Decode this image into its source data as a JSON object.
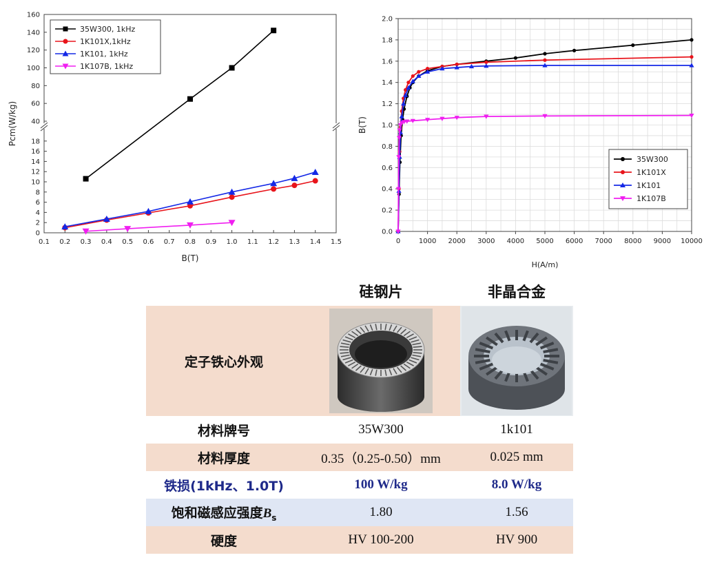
{
  "colors": {
    "black": "#000000",
    "red": "#e8141b",
    "blue": "#1428e6",
    "magenta": "#f01ef0",
    "table_peach": "#f4dccd",
    "table_blue": "#dfe6f4",
    "accent_text": "#1f2a8a"
  },
  "chart_data": [
    {
      "type": "line",
      "xlabel": "B(T)",
      "ylabel": "Pcm(W/kg)",
      "xlim": [
        0.1,
        1.5
      ],
      "x_ticks": [
        "0.1",
        "0.2",
        "0.3",
        "0.4",
        "0.5",
        "0.6",
        "0.7",
        "0.8",
        "0.9",
        "1.0",
        "1.1",
        "1.2",
        "1.3",
        "1.4",
        "1.5"
      ],
      "y_axis_broken": true,
      "y_lower_range": [
        0,
        20
      ],
      "y_lower_ticks": [
        "0",
        "2",
        "4",
        "6",
        "8",
        "10",
        "12",
        "14",
        "16",
        "18"
      ],
      "y_upper_range": [
        40,
        160
      ],
      "y_upper_ticks": [
        "40",
        "60",
        "80",
        "100",
        "120",
        "140",
        "160"
      ],
      "legend_position": "top-left",
      "series": [
        {
          "name": "35W300, 1kHz",
          "color": "#000000",
          "marker": "square",
          "x": [
            0.3,
            0.8,
            1.0,
            1.2
          ],
          "y": [
            10.6,
            65,
            100,
            142
          ]
        },
        {
          "name": "1K101X,1kHz",
          "color": "#e8141b",
          "marker": "circle",
          "x": [
            0.2,
            0.4,
            0.6,
            0.8,
            1.0,
            1.2,
            1.3,
            1.4
          ],
          "y": [
            1.0,
            2.5,
            3.9,
            5.3,
            7.0,
            8.6,
            9.3,
            10.2
          ]
        },
        {
          "name": "1K101, 1kHz",
          "color": "#1428e6",
          "marker": "triangle-up",
          "x": [
            0.2,
            0.4,
            0.6,
            0.8,
            1.0,
            1.2,
            1.3,
            1.4
          ],
          "y": [
            1.2,
            2.7,
            4.2,
            6.1,
            8.0,
            9.7,
            10.7,
            11.9
          ]
        },
        {
          "name": "1K107B, 1kHz",
          "color": "#f01ef0",
          "marker": "triangle-down",
          "x": [
            0.3,
            0.5,
            0.8,
            1.0
          ],
          "y": [
            0.3,
            0.8,
            1.5,
            2.0
          ]
        }
      ]
    },
    {
      "type": "line",
      "xlabel": "H(A/m)",
      "ylabel": "B(T)",
      "xlim": [
        0,
        10000
      ],
      "ylim": [
        0,
        2.0
      ],
      "x_ticks": [
        "0",
        "1000",
        "2000",
        "3000",
        "4000",
        "5000",
        "6000",
        "7000",
        "8000",
        "9000",
        "10000"
      ],
      "y_ticks": [
        "0.0",
        "0.2",
        "0.4",
        "0.6",
        "0.8",
        "1.0",
        "1.2",
        "1.4",
        "1.6",
        "1.8",
        "2.0"
      ],
      "grid": true,
      "legend_position": "bottom-right",
      "series": [
        {
          "name": "35W300",
          "color": "#000000",
          "marker": "circle",
          "x": [
            0,
            30,
            60,
            100,
            150,
            200,
            300,
            400,
            500,
            700,
            1000,
            1500,
            2000,
            3000,
            4000,
            5000,
            6000,
            8000,
            10000
          ],
          "y": [
            0,
            0.35,
            0.65,
            0.9,
            1.05,
            1.15,
            1.27,
            1.35,
            1.4,
            1.46,
            1.51,
            1.55,
            1.57,
            1.6,
            1.63,
            1.67,
            1.7,
            1.75,
            1.8
          ]
        },
        {
          "name": "1K101X",
          "color": "#e8141b",
          "marker": "circle",
          "x": [
            0,
            25,
            50,
            80,
            120,
            180,
            250,
            350,
            500,
            700,
            1000,
            1500,
            2000,
            3000,
            5000,
            10000
          ],
          "y": [
            0,
            0.4,
            0.75,
            0.98,
            1.13,
            1.25,
            1.33,
            1.4,
            1.46,
            1.5,
            1.53,
            1.55,
            1.57,
            1.59,
            1.61,
            1.64
          ]
        },
        {
          "name": "1K101",
          "color": "#1428e6",
          "marker": "triangle-up",
          "x": [
            0,
            25,
            50,
            80,
            120,
            180,
            250,
            350,
            500,
            700,
            1000,
            1500,
            2000,
            2500,
            3000,
            5000,
            10000
          ],
          "y": [
            0,
            0.38,
            0.7,
            0.93,
            1.08,
            1.2,
            1.28,
            1.35,
            1.41,
            1.46,
            1.5,
            1.53,
            1.54,
            1.55,
            1.555,
            1.56,
            1.56
          ]
        },
        {
          "name": "1K107B",
          "color": "#f01ef0",
          "marker": "triangle-down",
          "x": [
            0,
            10,
            20,
            35,
            50,
            80,
            120,
            200,
            300,
            500,
            1000,
            1500,
            2000,
            3000,
            5000,
            10000
          ],
          "y": [
            0,
            0.4,
            0.7,
            0.88,
            0.95,
            1.0,
            1.02,
            1.03,
            1.035,
            1.04,
            1.05,
            1.06,
            1.07,
            1.08,
            1.085,
            1.09
          ]
        }
      ]
    }
  ],
  "table": {
    "col1_header": "硅钢片",
    "col2_header": "非晶合金",
    "row_appearance": "定子铁心外观",
    "row_grade": {
      "label": "材料牌号",
      "v1": "35W300",
      "v2": "1k101"
    },
    "row_thickness": {
      "label": "材料厚度",
      "v1": "0.35（0.25-0.50）mm",
      "v2": "0.025 mm"
    },
    "row_loss": {
      "label": "铁损(1kHz、1.0T)",
      "v1": "100 W/kg",
      "v2": "8.0 W/kg"
    },
    "row_bs": {
      "label": "饱和磁感应强度",
      "symbol": "B",
      "subscript": "s",
      "v1": "1.80",
      "v2": "1.56"
    },
    "row_hardness": {
      "label": "硬度",
      "v1": "HV 100-200",
      "v2": "HV 900"
    }
  }
}
